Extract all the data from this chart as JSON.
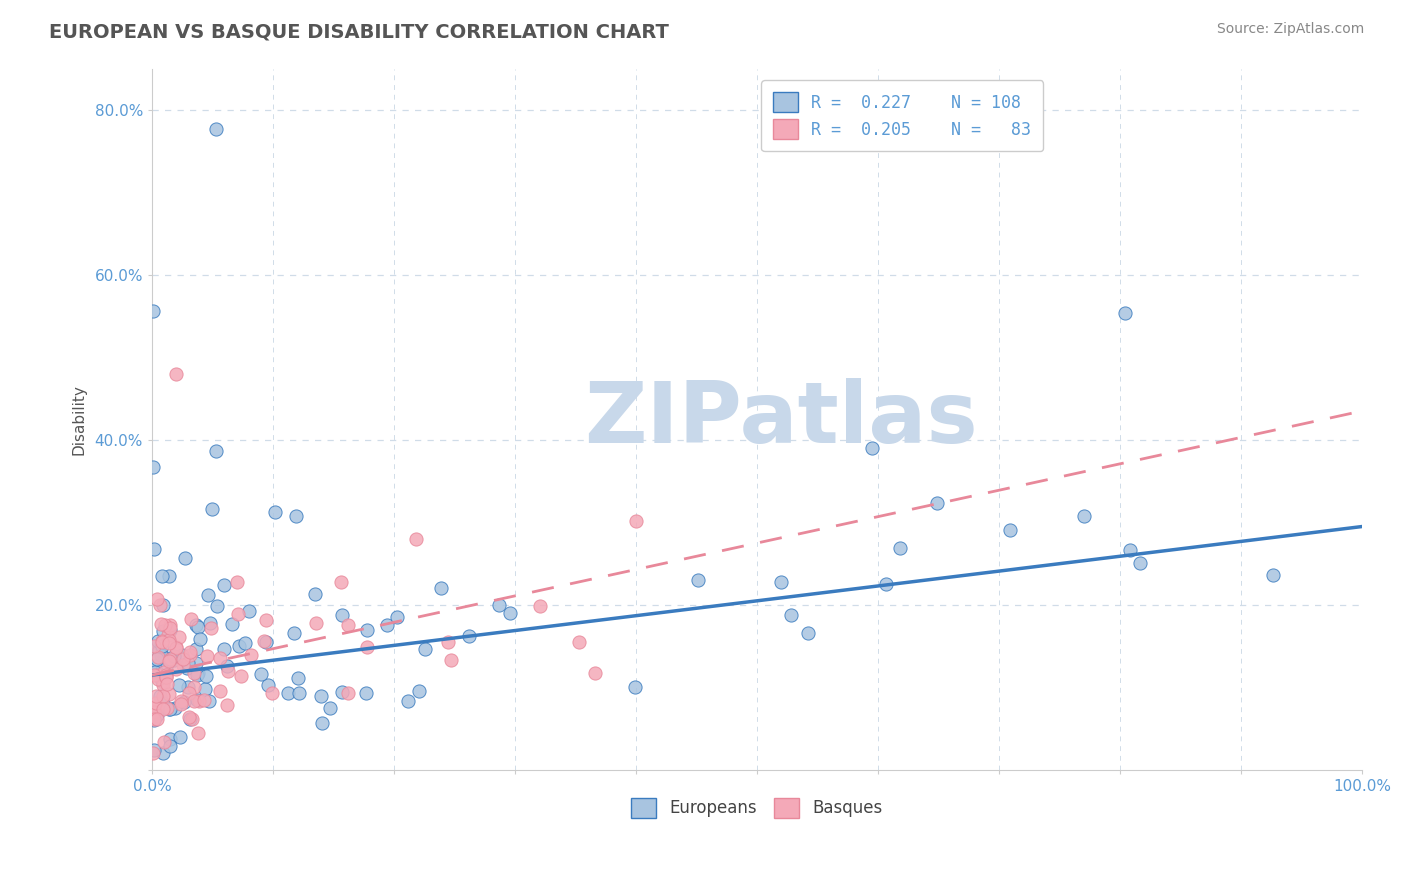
{
  "title": "EUROPEAN VS BASQUE DISABILITY CORRELATION CHART",
  "source": "Source: ZipAtlas.com",
  "ylabel": "Disability",
  "xlim": [
    0.0,
    1.0
  ],
  "ylim": [
    0.0,
    0.85
  ],
  "xtick_positions": [
    0.0,
    0.1,
    0.2,
    0.3,
    0.4,
    0.5,
    0.6,
    0.7,
    0.8,
    0.9,
    1.0
  ],
  "xticklabels": [
    "0.0%",
    "",
    "",
    "",
    "",
    "",
    "",
    "",
    "",
    "",
    "100.0%"
  ],
  "ytick_positions": [
    0.0,
    0.2,
    0.4,
    0.6,
    0.8
  ],
  "yticklabels": [
    "",
    "20.0%",
    "40.0%",
    "60.0%",
    "80.0%"
  ],
  "european_R": 0.227,
  "european_N": 108,
  "basque_R": 0.205,
  "basque_N": 83,
  "european_color": "#a8c4e0",
  "basque_color": "#f4a9b8",
  "trendline_european_color": "#3a7bbf",
  "trendline_basque_color": "#e8889a",
  "tick_color": "#5b9bd5",
  "watermark_color": "#c8d8ea",
  "grid_color": "#d0dce8",
  "background_color": "#ffffff",
  "title_color": "#555555",
  "source_color": "#888888",
  "ylabel_color": "#555555"
}
